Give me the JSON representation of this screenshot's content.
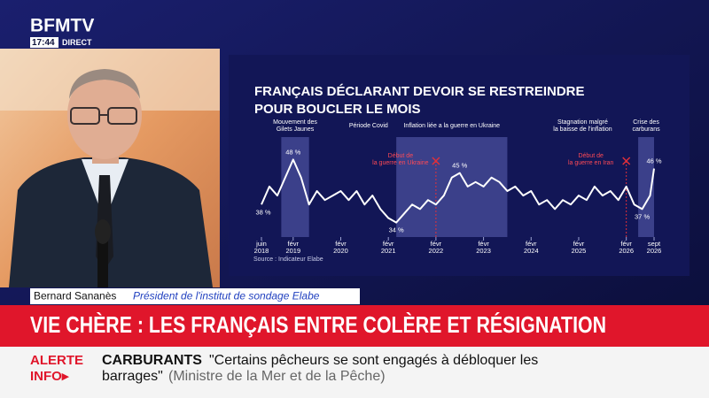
{
  "channel": {
    "logo": "BFMTV",
    "time": "17:44",
    "status": "DIRECT"
  },
  "chart_data": {
    "type": "line",
    "title": [
      "FRANÇAIS DÉCLARANT DEVOIR SE RESTREINDRE",
      "POUR BOUCLER LE MOIS"
    ],
    "source": "Source : Indicateur Elabe",
    "color": "#ffffff",
    "xlim": [
      "2018-06",
      "2026-09"
    ],
    "ylim": [
      30,
      52
    ],
    "xticks": [
      {
        "value": "2018-06",
        "label": "juin 2018"
      },
      {
        "value": "2019-02",
        "label": "févr 2019"
      },
      {
        "value": "2020-02",
        "label": "févr 2020"
      },
      {
        "value": "2021-02",
        "label": "févr 2021"
      },
      {
        "value": "2022-02",
        "label": "févr 2022"
      },
      {
        "value": "2023-02",
        "label": "févr 2023"
      },
      {
        "value": "2024-02",
        "label": "févr 2024"
      },
      {
        "value": "2025-02",
        "label": "févr 2025"
      },
      {
        "value": "2026-02",
        "label": "févr 2026"
      },
      {
        "value": "2026-09",
        "label": "sept 2026"
      }
    ],
    "x": [
      "2018-06",
      "2018-08",
      "2018-10",
      "2018-12",
      "2019-02",
      "2019-04",
      "2019-06",
      "2019-08",
      "2019-10",
      "2019-12",
      "2020-02",
      "2020-04",
      "2020-06",
      "2020-08",
      "2020-10",
      "2020-12",
      "2021-02",
      "2021-04",
      "2021-06",
      "2021-08",
      "2021-10",
      "2021-12",
      "2022-02",
      "2022-04",
      "2022-06",
      "2022-08",
      "2022-10",
      "2022-12",
      "2023-02",
      "2023-04",
      "2023-06",
      "2023-08",
      "2023-10",
      "2023-12",
      "2024-02",
      "2024-04",
      "2024-06",
      "2024-08",
      "2024-10",
      "2024-12",
      "2025-02",
      "2025-04",
      "2025-06",
      "2025-08",
      "2025-10",
      "2025-12",
      "2026-02",
      "2026-04",
      "2026-06",
      "2026-08",
      "2026-09"
    ],
    "values": [
      38,
      42,
      40,
      44,
      48,
      44,
      38,
      41,
      39,
      40,
      41,
      39,
      41,
      38,
      40,
      37,
      35,
      34,
      36,
      38,
      37,
      39,
      38,
      40,
      44,
      45,
      42,
      43,
      42,
      44,
      43,
      41,
      42,
      40,
      41,
      38,
      39,
      37,
      39,
      38,
      40,
      39,
      42,
      40,
      41,
      39,
      42,
      38,
      37,
      40,
      46
    ],
    "value_labels": [
      "38 %",
      null,
      null,
      null,
      "48 %",
      null,
      null,
      null,
      null,
      null,
      null,
      null,
      null,
      null,
      null,
      null,
      null,
      "34 %",
      null,
      null,
      null,
      null,
      null,
      null,
      null,
      "45 %",
      null,
      null,
      null,
      null,
      null,
      null,
      null,
      null,
      null,
      null,
      null,
      null,
      null,
      null,
      null,
      null,
      null,
      null,
      null,
      null,
      null,
      null,
      "37 %",
      null,
      "46 %"
    ],
    "periods": [
      {
        "label": [
          "Mouvement des",
          "Gilets Jaunes"
        ],
        "start": "2018-11",
        "end": "2019-06",
        "shaded": true
      },
      {
        "label": [
          "Période Covid"
        ],
        "start": "2020-03",
        "end": "2021-03",
        "shaded": false
      },
      {
        "label": [
          "Inflation liée a la guerre en Ukraine"
        ],
        "start": "2021-04",
        "end": "2023-08",
        "shaded": true
      },
      {
        "label": [
          "Stagnation malgré",
          "la baisse de l'inflation"
        ],
        "start": "2024-07",
        "end": "2025-11",
        "shaded": false
      },
      {
        "label": [
          "Crise des",
          "carburans"
        ],
        "start": "2026-05",
        "end": "2026-09",
        "shaded": true
      }
    ],
    "events": [
      {
        "label": [
          "Début de",
          "la guerre en Ukraine"
        ],
        "x": "2022-02"
      },
      {
        "label": [
          "Début de",
          "la guerre en Iran"
        ],
        "x": "2026-02"
      }
    ]
  },
  "lower_third": {
    "name": "Bernard Sananès",
    "role": "Président de l'institut de sondage Elabe",
    "headline": "VIE CHÈRE : LES FRANÇAIS ENTRE COLÈRE ET RÉSIGNATION"
  },
  "ticker": {
    "badge": [
      "ALERTE",
      "INFO▸"
    ],
    "topic": "CARBURANTS",
    "quote": [
      "\"Certains pêcheurs se sont engagés à débloquer les",
      "barrages\""
    ],
    "attribution": "(Ministre de la Mer et de la Pêche)"
  }
}
